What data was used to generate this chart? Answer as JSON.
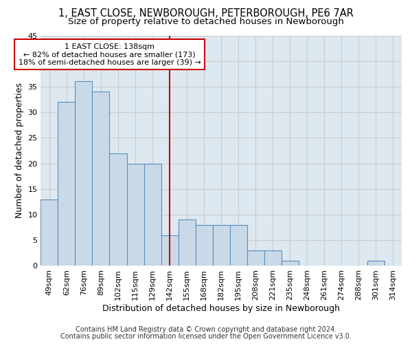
{
  "title": "1, EAST CLOSE, NEWBOROUGH, PETERBOROUGH, PE6 7AR",
  "subtitle": "Size of property relative to detached houses in Newborough",
  "xlabel": "Distribution of detached houses by size in Newborough",
  "ylabel": "Number of detached properties",
  "categories": [
    "49sqm",
    "62sqm",
    "76sqm",
    "89sqm",
    "102sqm",
    "115sqm",
    "129sqm",
    "142sqm",
    "155sqm",
    "168sqm",
    "182sqm",
    "195sqm",
    "208sqm",
    "221sqm",
    "235sqm",
    "248sqm",
    "261sqm",
    "274sqm",
    "288sqm",
    "301sqm",
    "314sqm"
  ],
  "values": [
    13,
    32,
    36,
    34,
    22,
    20,
    20,
    6,
    9,
    8,
    8,
    8,
    3,
    3,
    1,
    0,
    0,
    0,
    0,
    1,
    0
  ],
  "bar_color": "#c9d9e8",
  "bar_edge_color": "#5a8fbe",
  "bar_edge_width": 0.8,
  "vline_x_idx": 7,
  "vline_color": "#cc0000",
  "annotation_title": "1 EAST CLOSE: 138sqm",
  "annotation_line1": "← 82% of detached houses are smaller (173)",
  "annotation_line2": "18% of semi-detached houses are larger (39) →",
  "annotation_box_color": "#cc0000",
  "ylim": [
    0,
    45
  ],
  "yticks": [
    0,
    5,
    10,
    15,
    20,
    25,
    30,
    35,
    40,
    45
  ],
  "grid_color": "#cccccc",
  "bg_color": "#dde8f0",
  "footer_line1": "Contains HM Land Registry data © Crown copyright and database right 2024.",
  "footer_line2": "Contains public sector information licensed under the Open Government Licence v3.0.",
  "title_fontsize": 10.5,
  "subtitle_fontsize": 9.5,
  "axis_label_fontsize": 9,
  "tick_fontsize": 8,
  "annotation_fontsize": 8,
  "footer_fontsize": 7
}
